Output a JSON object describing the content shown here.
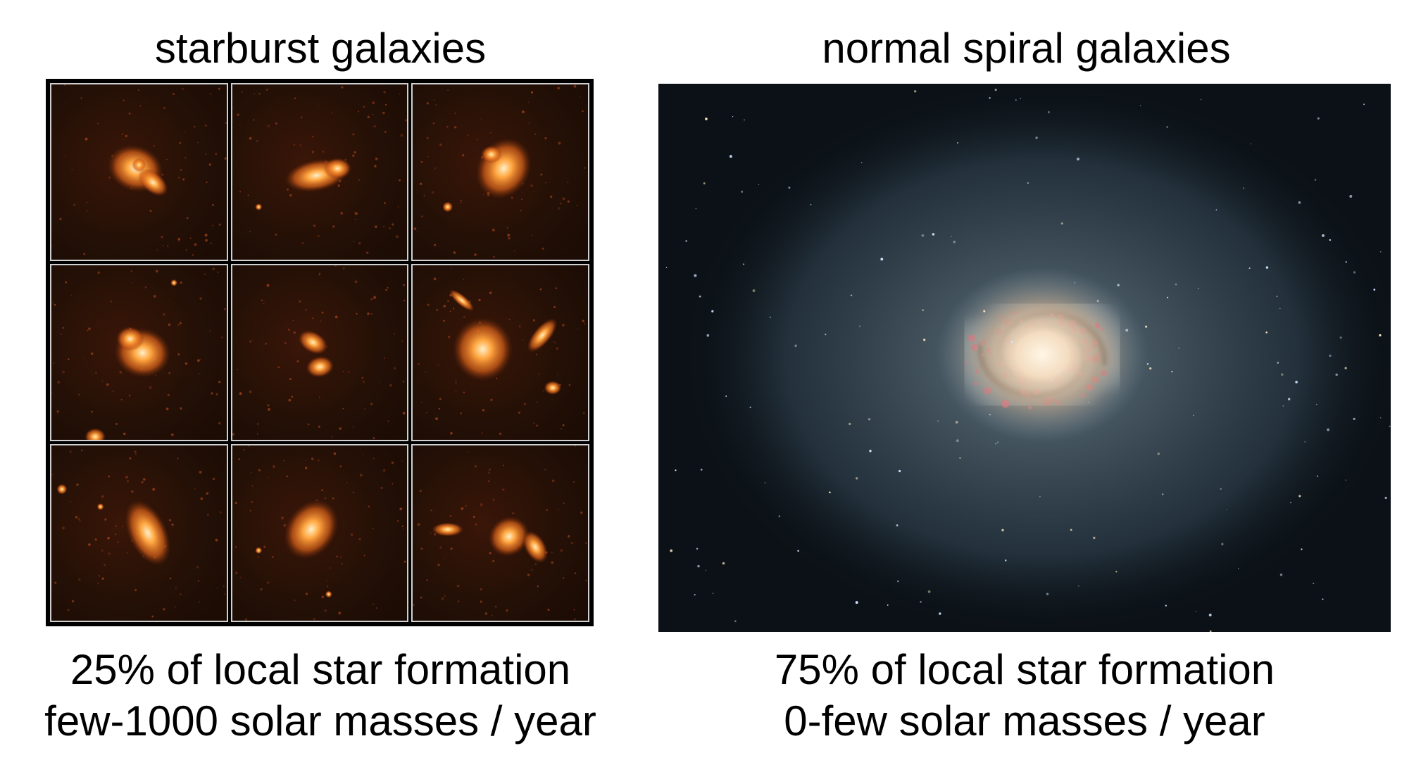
{
  "left": {
    "heading": "starburst galaxies",
    "caption_line1": "25% of local star formation",
    "caption_line2": "few-1000 solar masses / year",
    "panel_count": 9
  },
  "right": {
    "heading": "normal spiral galaxies",
    "caption_line1": "75% of local star formation",
    "caption_line2": "0-few solar masses / year"
  },
  "colors": {
    "background": "#ffffff",
    "starburst_glow": "#ff8a2a",
    "starburst_sky": "#241006",
    "spiral_core": "#fff2dc",
    "spiral_arms": "#6f8796",
    "hii_regions": "#ff4f6a",
    "space": "#0b1116"
  }
}
